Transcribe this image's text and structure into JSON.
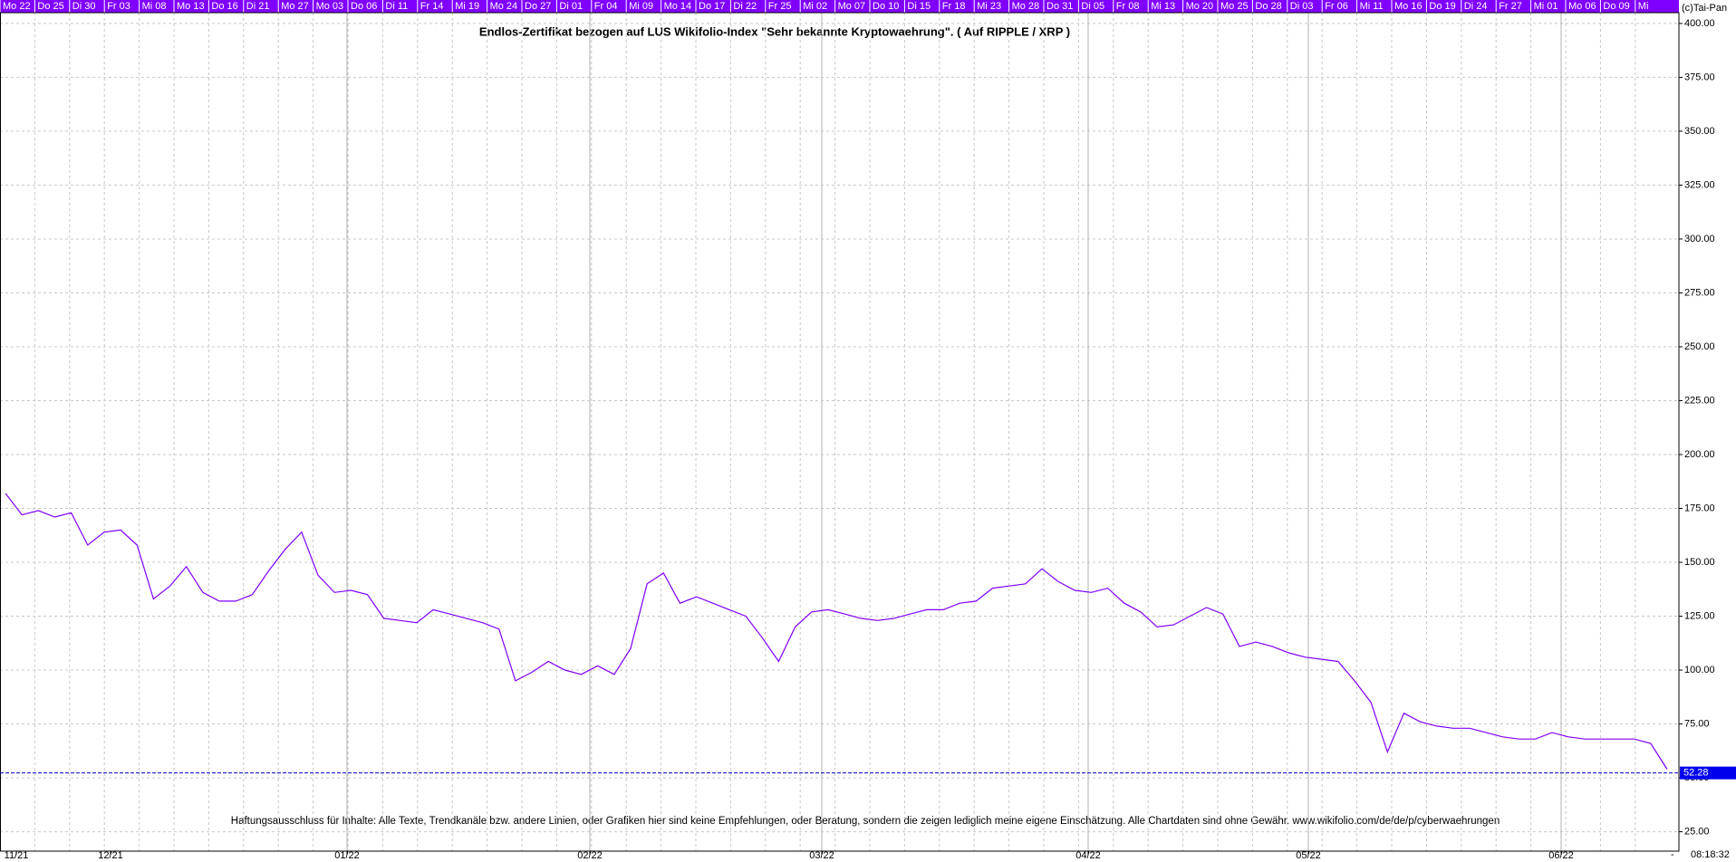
{
  "chart_data": {
    "type": "line",
    "title": "Endlos-Zertifikat bezogen auf LUS Wikifolio-Index \"Sehr bekannte Kryptowaehrung\". ( Auf RIPPLE / XRP )",
    "disclaimer": "Haftungsausschluss für Inhalte: Alle Texte, Trendkanäle bzw. andere Linien, oder Grafiken hier sind keine Empfehlungen, oder Beratung, sondern die zeigen lediglich meine eigene Einschätzung. Alle Chartdaten sind ohne Gewähr.  www.wikifolio.com/de/de/p/cyberwaehrungen",
    "copyright": "(c)Tai-Pan",
    "time": "08:18:32",
    "x_axis_end": "-",
    "date_labels": [
      "Mo 22",
      "Do 25",
      "Di 30",
      "Fr 03",
      "Mi 08",
      "Mo 13",
      "Do 16",
      "Di 21",
      "Mo 27",
      "Mo 03",
      "Do 06",
      "Di 11",
      "Fr 14",
      "Mi 19",
      "Mo 24",
      "Do 27",
      "Di 01",
      "Fr 04",
      "Mi 09",
      "Mo 14",
      "Do 17",
      "Di 22",
      "Fr 25",
      "Mi 02",
      "Mo 07",
      "Do 10",
      "Di 15",
      "Fr 18",
      "Mi 23",
      "Mo 28",
      "Do 31",
      "Di 05",
      "Fr 08",
      "Mi 13",
      "Mo 20",
      "Mo 25",
      "Do 28",
      "Di 03",
      "Fr 06",
      "Mi 11",
      "Mo 16",
      "Do 19",
      "Di 24",
      "Fr 27",
      "Mi 01",
      "Mo 06",
      "Do 09",
      "Mi"
    ],
    "x_labels": [
      "11/21",
      "12/21",
      "01/22",
      "02/22",
      "03/22",
      "04/22",
      "05/22",
      "06/22"
    ],
    "values": [
      182,
      172,
      174,
      171,
      173,
      158,
      164,
      165,
      158,
      133,
      139,
      148,
      136,
      132,
      132,
      135,
      146,
      156,
      164,
      144,
      136,
      137,
      135,
      124,
      123,
      122,
      128,
      126,
      124,
      122,
      119,
      95,
      99,
      104,
      100,
      98,
      102,
      98,
      110,
      140,
      145,
      131,
      134,
      131,
      128,
      125,
      115,
      104,
      120,
      127,
      128,
      126,
      124,
      123,
      124,
      126,
      128,
      128,
      131,
      132,
      138,
      139,
      140,
      147,
      141,
      137,
      136,
      138,
      131,
      127,
      120,
      121,
      125,
      129,
      126,
      111,
      113,
      111,
      108,
      106,
      105,
      104,
      95,
      85,
      62,
      80,
      76,
      74,
      73,
      73,
      71,
      69,
      68,
      68,
      71,
      69,
      68,
      68,
      68,
      68,
      66,
      54
    ],
    "last_value": 52.28,
    "color": "#8000ff",
    "bar_color": "#8000ff",
    "grid": true,
    "ylim": [
      16,
      405
    ],
    "yticks": [
      {
        "value": 25,
        "label": "25.00"
      },
      {
        "value": 50,
        "label": "50.00"
      },
      {
        "value": 75,
        "label": "75.00"
      },
      {
        "value": 100,
        "label": "100.00"
      },
      {
        "value": 125,
        "label": "125.00"
      },
      {
        "value": 150,
        "label": "150.00"
      },
      {
        "value": 175,
        "label": "175.00"
      },
      {
        "value": 200,
        "label": "200.00"
      },
      {
        "value": 225,
        "label": "225.00"
      },
      {
        "value": 250,
        "label": "250.00"
      },
      {
        "value": 275,
        "label": "275.00"
      },
      {
        "value": 300,
        "label": "300.00"
      },
      {
        "value": 325,
        "label": "325.00"
      },
      {
        "value": 350,
        "label": "350.00"
      },
      {
        "value": 375,
        "label": "375.00"
      },
      {
        "value": 400,
        "label": "400.00"
      }
    ]
  }
}
